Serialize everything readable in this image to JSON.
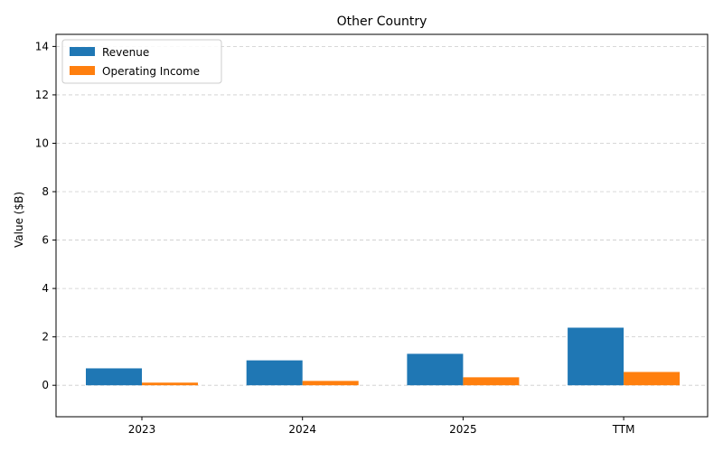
{
  "chart_data": {
    "type": "bar",
    "title": "Other Country",
    "xlabel": "",
    "ylabel": "Value ($B)",
    "categories": [
      "2023",
      "2024",
      "2025",
      "TTM"
    ],
    "series": [
      {
        "name": "Revenue",
        "color": "#1f77b4",
        "values": [
          0.7,
          1.03,
          1.3,
          2.38
        ]
      },
      {
        "name": "Operating Income",
        "color": "#ff7f0e",
        "values": [
          0.11,
          0.18,
          0.33,
          0.55
        ]
      }
    ],
    "ylim": [
      -1.3,
      14.5
    ],
    "yticks": [
      0,
      2,
      4,
      6,
      8,
      10,
      12,
      14
    ],
    "grid": true,
    "legend_position": "top-left"
  }
}
